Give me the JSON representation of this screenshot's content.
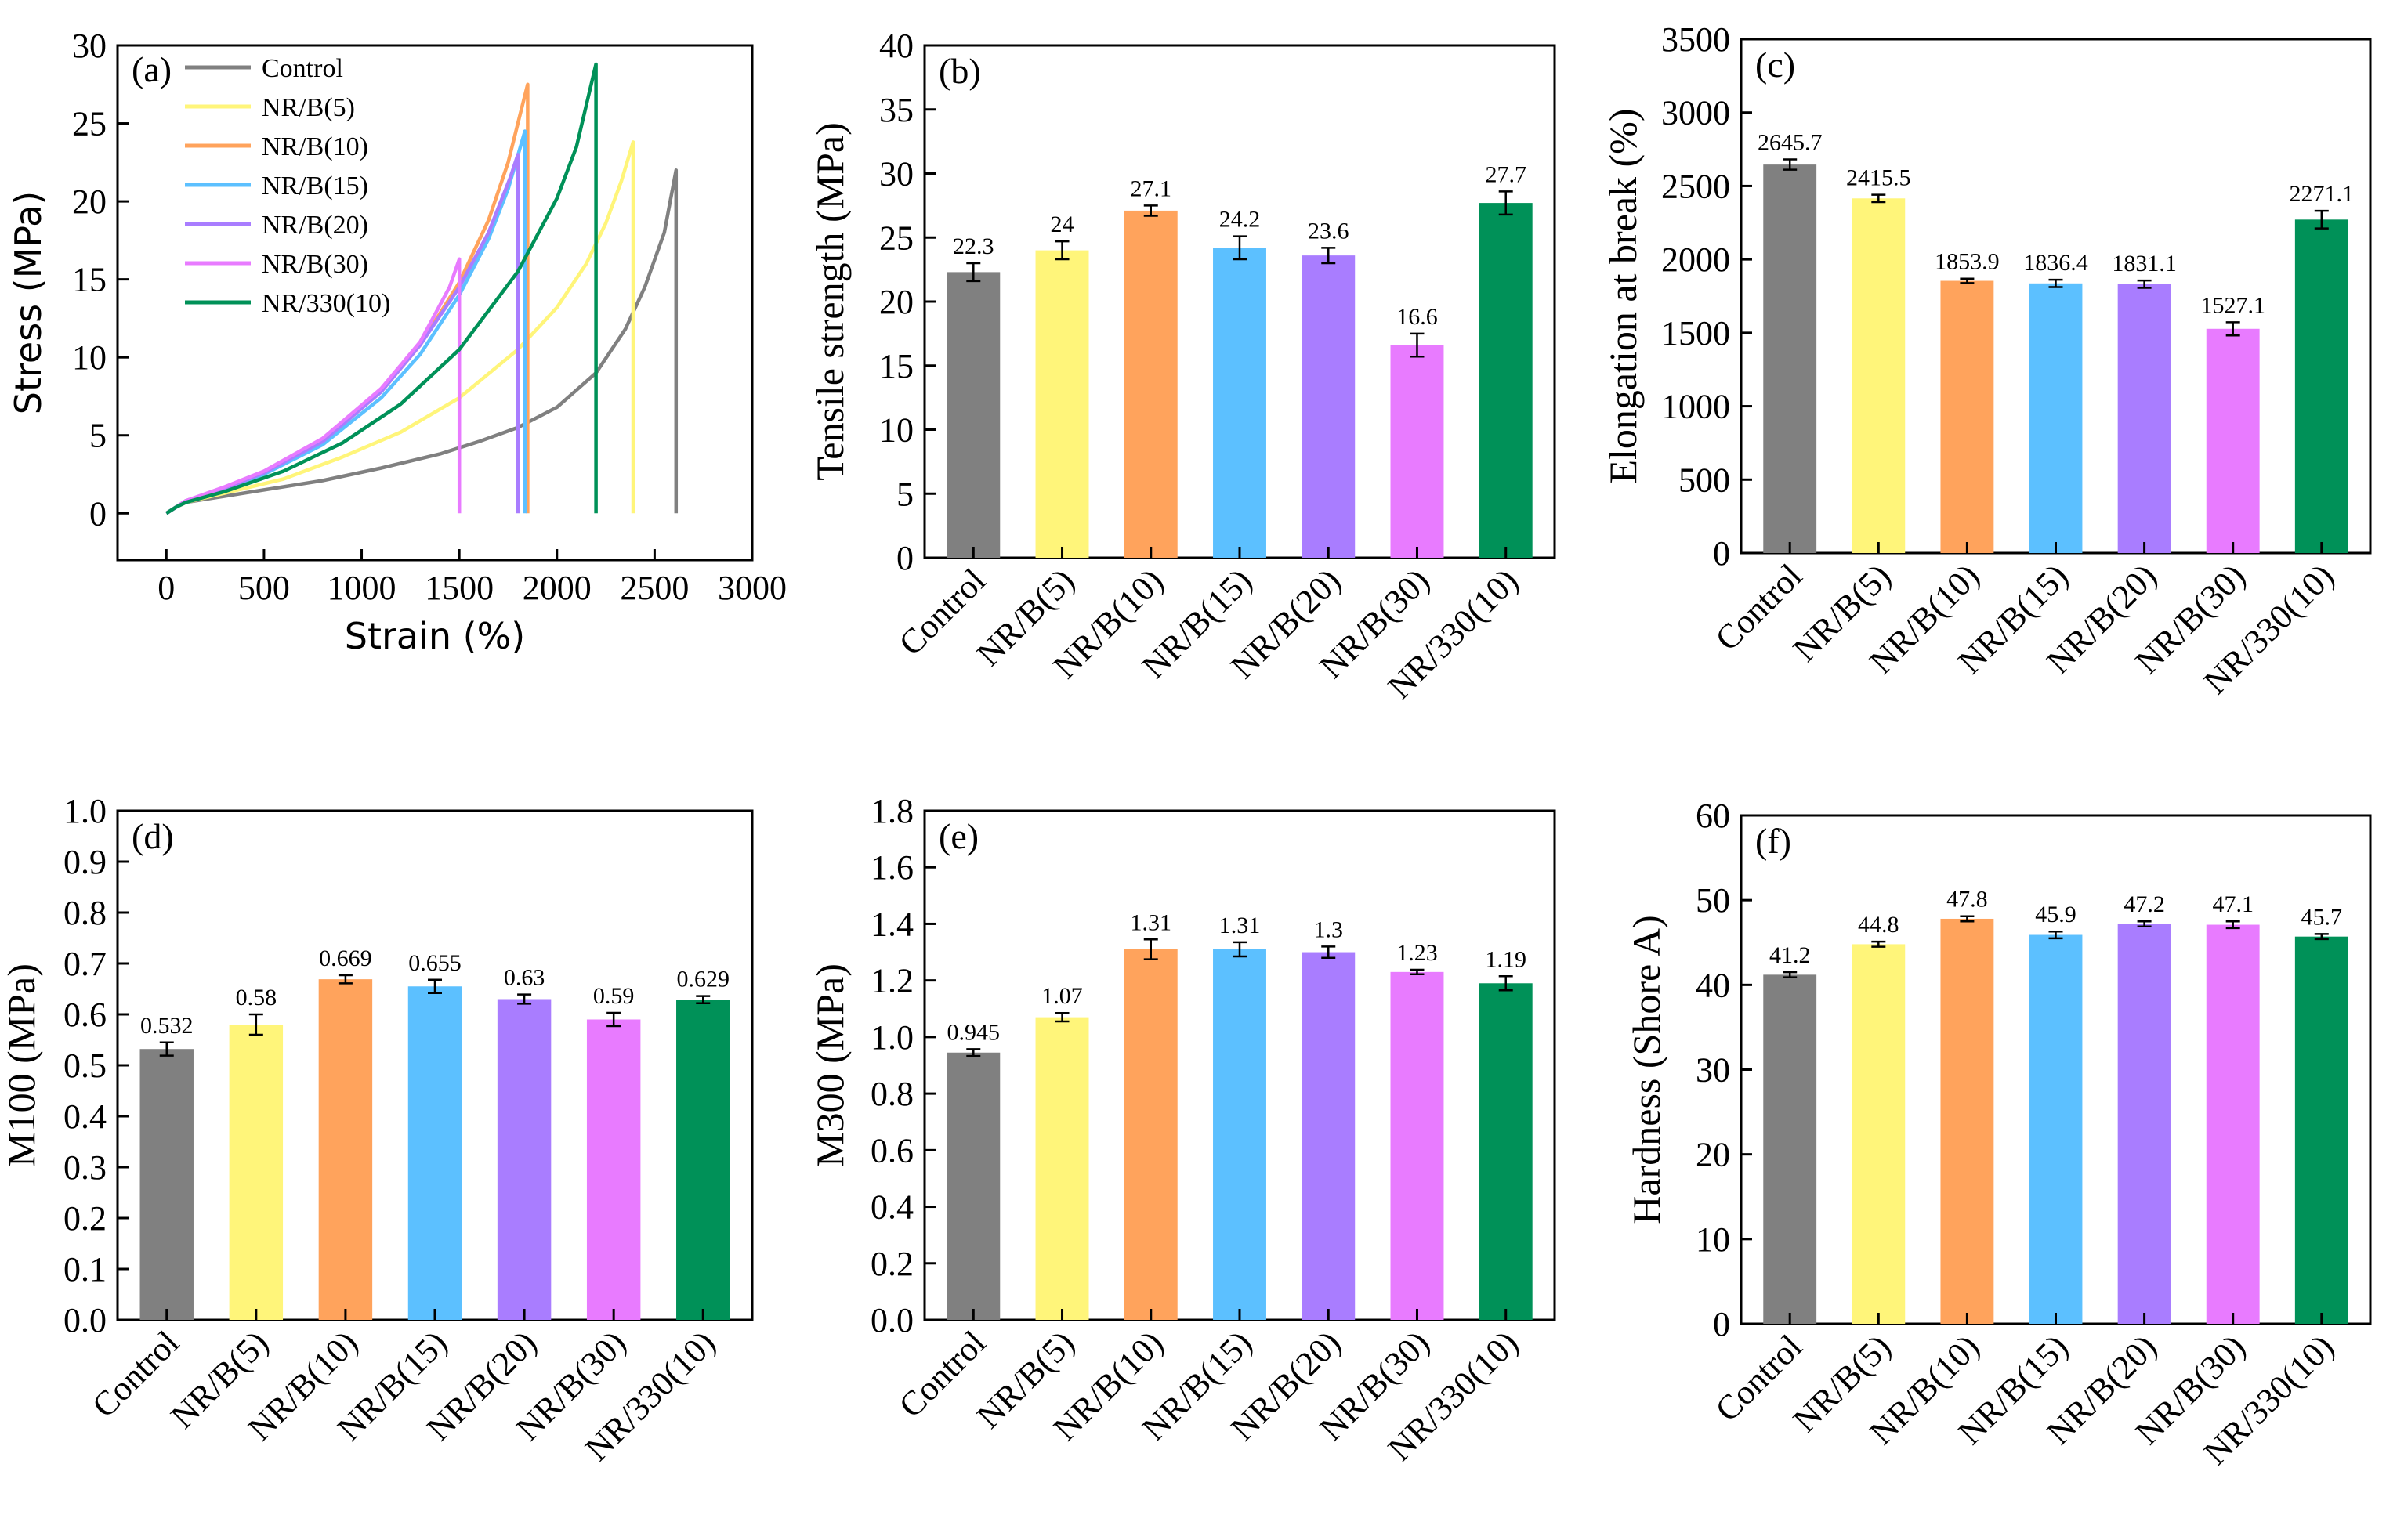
{
  "categories": [
    "Control",
    "NR/B(5)",
    "NR/B(10)",
    "NR/B(15)",
    "NR/B(20)",
    "NR/B(30)",
    "NR/330(10)"
  ],
  "colors": [
    "#808080",
    "#FFF57A",
    "#FFA35C",
    "#5CC0FF",
    "#A97DFF",
    "#E87BFF",
    "#009158"
  ],
  "chart_data": [
    {
      "id": "a",
      "type": "line",
      "panel": "(a)",
      "xlabel": "Strain (%)",
      "ylabel": "Stress (MPa)",
      "xlim": [
        -250,
        3000
      ],
      "ylim": [
        -3,
        30
      ],
      "xticks": [
        0,
        500,
        1000,
        1500,
        2000,
        2500,
        3000
      ],
      "yticks": [
        0,
        5,
        10,
        15,
        20,
        25,
        30
      ],
      "legend_position": "top-left",
      "series": [
        {
          "name": "Control",
          "color": "#808080",
          "x": [
            0,
            50,
            100,
            300,
            500,
            800,
            1100,
            1400,
            1600,
            1800,
            2000,
            2200,
            2350,
            2450,
            2550,
            2610,
            2610
          ],
          "y": [
            0,
            0.4,
            0.7,
            1.1,
            1.5,
            2.1,
            2.9,
            3.8,
            4.6,
            5.5,
            6.8,
            9.0,
            11.8,
            14.5,
            18.0,
            22.0,
            0
          ]
        },
        {
          "name": "NR/B(5)",
          "color": "#FFF57A",
          "x": [
            0,
            50,
            100,
            300,
            600,
            900,
            1200,
            1500,
            1800,
            2000,
            2150,
            2250,
            2330,
            2390,
            2390
          ],
          "y": [
            0,
            0.4,
            0.7,
            1.3,
            2.2,
            3.6,
            5.2,
            7.4,
            10.5,
            13.2,
            16.0,
            18.6,
            21.3,
            23.8,
            0
          ]
        },
        {
          "name": "NR/B(10)",
          "color": "#FFA35C",
          "x": [
            0,
            50,
            100,
            300,
            500,
            800,
            1100,
            1300,
            1500,
            1650,
            1750,
            1810,
            1850,
            1850
          ],
          "y": [
            0,
            0.4,
            0.8,
            1.6,
            2.6,
            4.6,
            7.8,
            10.8,
            14.8,
            18.8,
            22.5,
            25.5,
            27.5,
            0
          ]
        },
        {
          "name": "NR/B(15)",
          "color": "#5CC0FF",
          "x": [
            0,
            50,
            100,
            300,
            500,
            800,
            1100,
            1300,
            1500,
            1650,
            1750,
            1836,
            1836
          ],
          "y": [
            0,
            0.4,
            0.8,
            1.6,
            2.5,
            4.4,
            7.4,
            10.2,
            14.0,
            17.6,
            20.8,
            24.5,
            0
          ]
        },
        {
          "name": "NR/B(20)",
          "color": "#A97DFF",
          "x": [
            0,
            50,
            100,
            300,
            500,
            800,
            1100,
            1300,
            1500,
            1650,
            1760,
            1800,
            1800
          ],
          "y": [
            0,
            0.4,
            0.8,
            1.6,
            2.6,
            4.6,
            7.8,
            10.8,
            14.5,
            18.0,
            21.5,
            23.0,
            0
          ]
        },
        {
          "name": "NR/B(30)",
          "color": "#E87BFF",
          "x": [
            0,
            50,
            100,
            300,
            500,
            800,
            1100,
            1300,
            1450,
            1500,
            1500
          ],
          "y": [
            0,
            0.4,
            0.8,
            1.7,
            2.7,
            4.8,
            8.0,
            11.0,
            14.5,
            16.3,
            0
          ]
        },
        {
          "name": "NR/330(10)",
          "color": "#009158",
          "x": [
            0,
            50,
            100,
            300,
            600,
            900,
            1200,
            1500,
            1800,
            2000,
            2100,
            2200,
            2200
          ],
          "y": [
            0,
            0.4,
            0.7,
            1.4,
            2.7,
            4.5,
            7.0,
            10.5,
            15.5,
            20.2,
            23.5,
            28.8,
            0
          ]
        }
      ]
    },
    {
      "id": "b",
      "type": "bar",
      "panel": "(b)",
      "xlabel": "",
      "ylabel": "Tensile strength (MPa)",
      "ylim": [
        0,
        40
      ],
      "yticks": [
        0,
        5,
        10,
        15,
        20,
        25,
        30,
        35,
        40
      ],
      "values": [
        22.3,
        24,
        27.1,
        24.2,
        23.6,
        16.6,
        27.7
      ],
      "labels": [
        "22.3",
        "24",
        "27.1",
        "24.2",
        "23.6",
        "16.6",
        "27.7"
      ],
      "errors": [
        0.7,
        0.7,
        0.4,
        0.9,
        0.6,
        0.9,
        0.9
      ]
    },
    {
      "id": "c",
      "type": "bar",
      "panel": "(c)",
      "xlabel": "",
      "ylabel": "Elongation at break (%)",
      "ylim": [
        0,
        3500
      ],
      "yticks": [
        0,
        500,
        1000,
        1500,
        2000,
        2500,
        3000,
        3500
      ],
      "values": [
        2645.7,
        2415.5,
        1853.9,
        1836.4,
        1831.1,
        1527.1,
        2271.1
      ],
      "labels": [
        "2645.7",
        "2415.5",
        "1853.9",
        "1836.4",
        "1831.1",
        "1527.1",
        "2271.1"
      ],
      "errors": [
        35,
        25,
        15,
        25,
        25,
        45,
        60
      ]
    },
    {
      "id": "d",
      "type": "bar",
      "panel": "(d)",
      "xlabel": "",
      "ylabel": "M100 (MPa)",
      "ylim": [
        0,
        1.0
      ],
      "yticks": [
        0.0,
        0.1,
        0.2,
        0.3,
        0.4,
        0.5,
        0.6,
        0.7,
        0.8,
        0.9,
        1.0
      ],
      "tick_decimals": 1,
      "values": [
        0.532,
        0.58,
        0.669,
        0.655,
        0.63,
        0.59,
        0.629
      ],
      "labels": [
        "0.532",
        "0.58",
        "0.669",
        "0.655",
        "0.63",
        "0.59",
        "0.629"
      ],
      "errors": [
        0.013,
        0.02,
        0.008,
        0.013,
        0.009,
        0.013,
        0.007
      ]
    },
    {
      "id": "e",
      "type": "bar",
      "panel": "(e)",
      "xlabel": "",
      "ylabel": "M300 (MPa)",
      "ylim": [
        0,
        1.8
      ],
      "yticks": [
        0.0,
        0.2,
        0.4,
        0.6,
        0.8,
        1.0,
        1.2,
        1.4,
        1.6,
        1.8
      ],
      "tick_decimals": 1,
      "values": [
        0.945,
        1.07,
        1.31,
        1.31,
        1.3,
        1.23,
        1.19
      ],
      "labels": [
        "0.945",
        "1.07",
        "1.31",
        "1.31",
        "1.3",
        "1.23",
        "1.19"
      ],
      "errors": [
        0.012,
        0.015,
        0.035,
        0.025,
        0.02,
        0.008,
        0.025
      ]
    },
    {
      "id": "f",
      "type": "bar",
      "panel": "(f)",
      "xlabel": "",
      "ylabel": "Hardness (Shore A)",
      "ylim": [
        0,
        60
      ],
      "yticks": [
        0,
        10,
        20,
        30,
        40,
        50,
        60
      ],
      "values": [
        41.2,
        44.8,
        47.8,
        45.9,
        47.2,
        47.1,
        45.7
      ],
      "labels": [
        "41.2",
        "44.8",
        "47.8",
        "45.9",
        "47.2",
        "47.1",
        "45.7"
      ],
      "errors": [
        0.3,
        0.3,
        0.3,
        0.4,
        0.3,
        0.4,
        0.3
      ]
    }
  ]
}
